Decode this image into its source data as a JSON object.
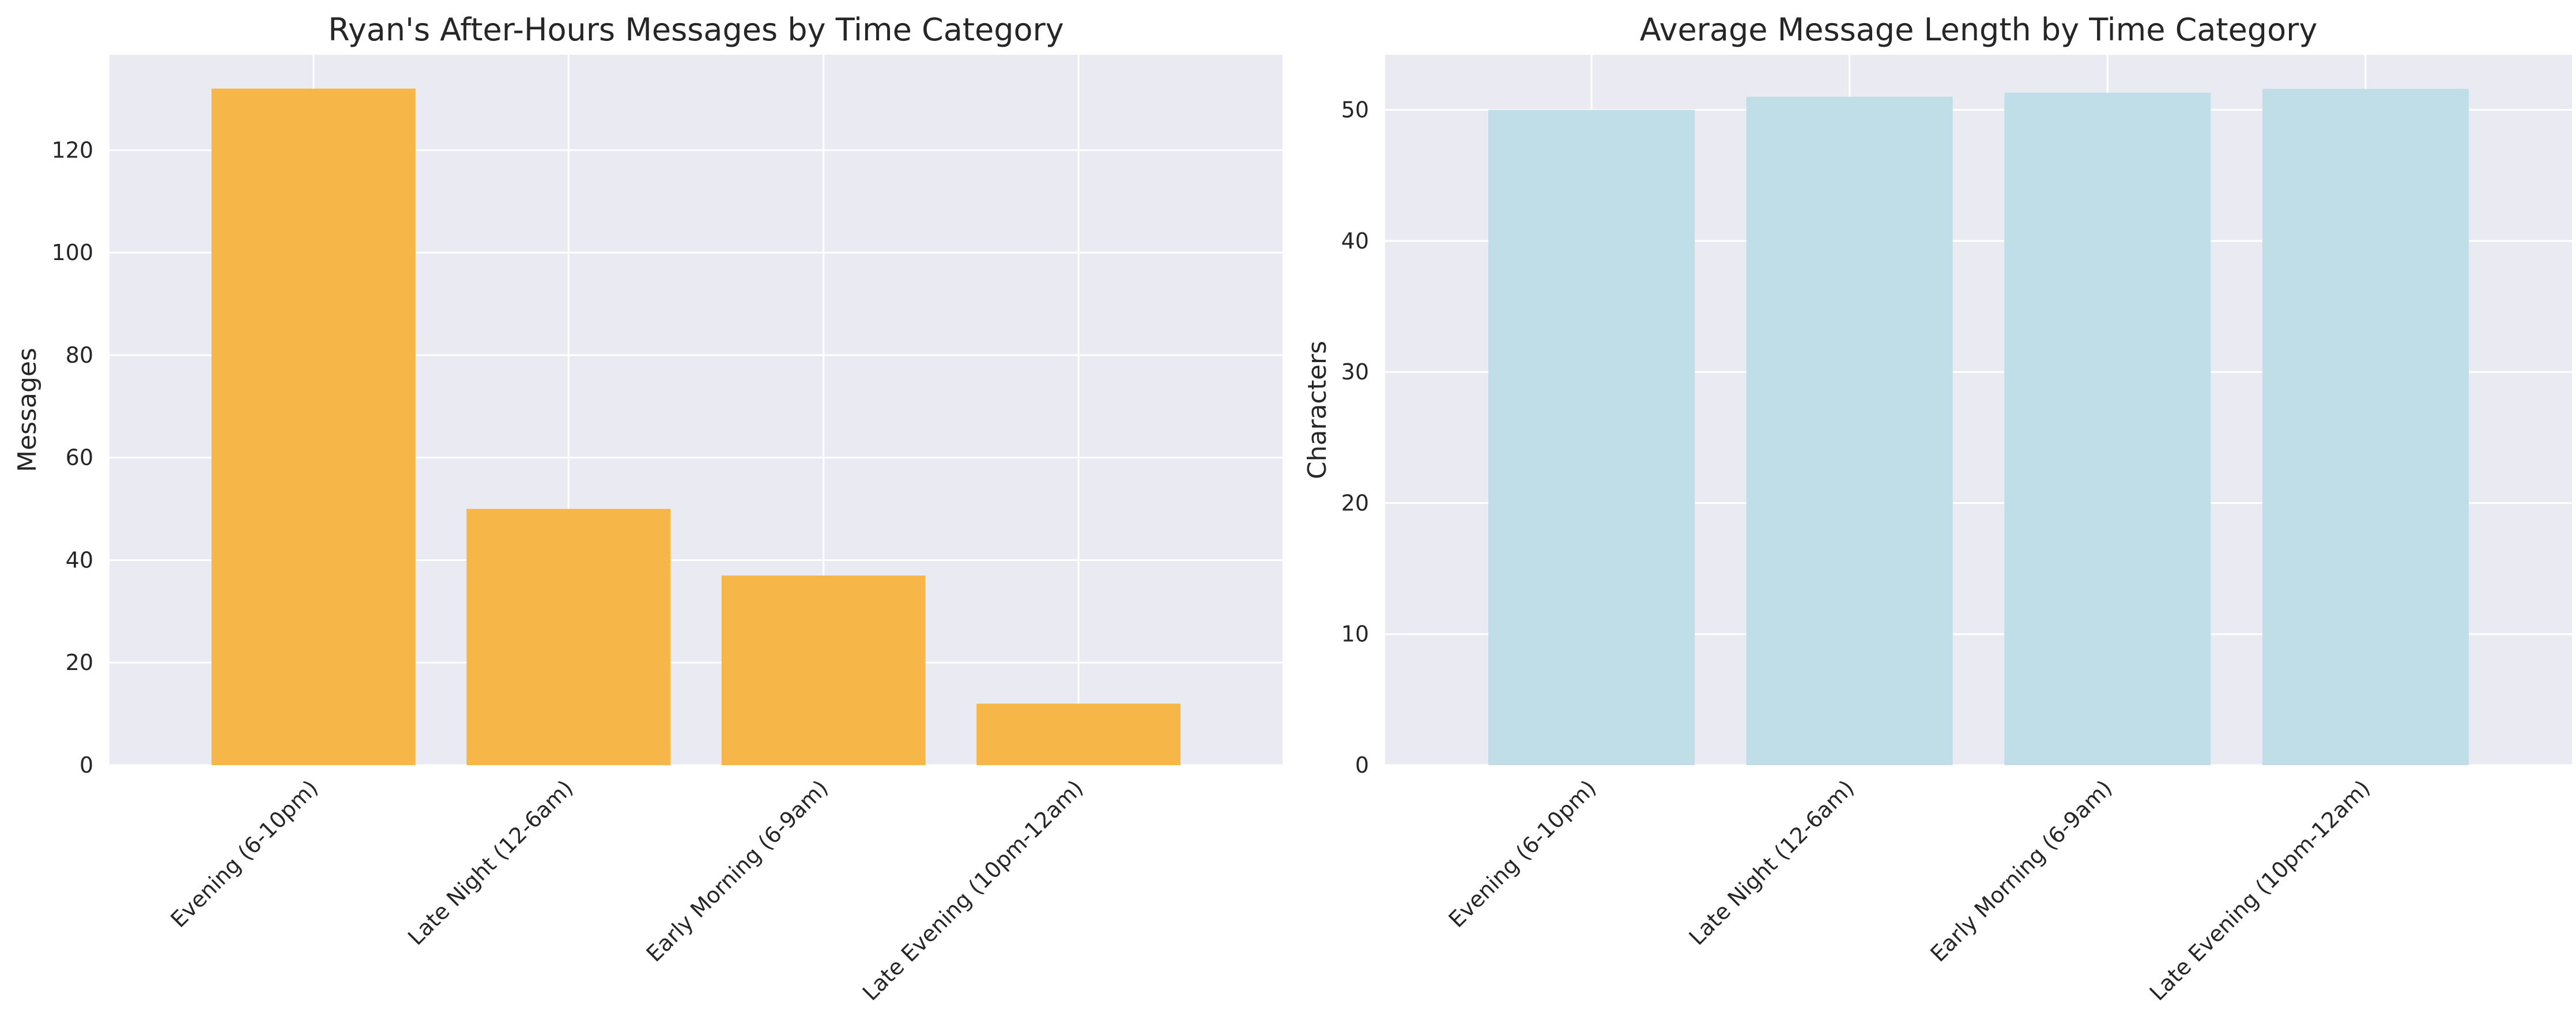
{
  "chart_data": [
    {
      "type": "bar",
      "title": "Ryan's After-Hours Messages by Time Category",
      "xlabel": "",
      "ylabel": "Messages",
      "categories": [
        "Evening (6-10pm)",
        "Late Night (12-6am)",
        "Early Morning (6-9am)",
        "Late Evening (10pm-12am)"
      ],
      "values": [
        132,
        50,
        37,
        12
      ],
      "ylim": [
        0,
        138.6
      ],
      "yticks": [
        0,
        20,
        40,
        60,
        80,
        100,
        120
      ],
      "bar_color": "#f7b748",
      "grid": true,
      "legend": "none"
    },
    {
      "type": "bar",
      "title": "Average Message Length by Time Category",
      "xlabel": "",
      "ylabel": "Characters",
      "categories": [
        "Evening (6-10pm)",
        "Late Night (12-6am)",
        "Early Morning (6-9am)",
        "Late Evening (10pm-12am)"
      ],
      "values": [
        50.0,
        51.0,
        51.3,
        51.6
      ],
      "ylim": [
        0,
        54.2
      ],
      "yticks": [
        0,
        10,
        20,
        30,
        40,
        50
      ],
      "bar_color": "#c0dee8",
      "grid": true,
      "legend": "none"
    }
  ]
}
